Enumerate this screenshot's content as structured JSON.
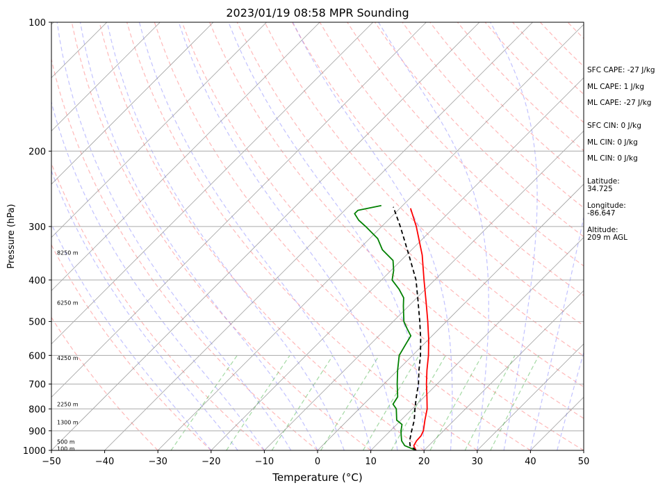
{
  "chart_data": {
    "type": "skew-t",
    "title": "2023/01/19 08:58 MPR Sounding",
    "xlabel": "Temperature (°C)",
    "ylabel": "Pressure (hPa)",
    "xlim": [
      -50,
      50
    ],
    "ylim": [
      1000,
      100
    ],
    "x_ticks": [
      -50,
      -40,
      -30,
      -20,
      -10,
      0,
      10,
      20,
      30,
      40,
      50
    ],
    "x_tick_labels": [
      "−50",
      "−40",
      "−30",
      "−20",
      "−10",
      "0",
      "10",
      "20",
      "30",
      "40",
      "50"
    ],
    "y_ticks": [
      1000,
      900,
      800,
      700,
      600,
      500,
      400,
      300,
      200,
      100
    ],
    "y_tick_labels": [
      "1000",
      "900",
      "800",
      "700",
      "600",
      "500",
      "400",
      "300",
      "200",
      "100"
    ],
    "height_labels": [
      {
        "p": 990,
        "text": "100 m"
      },
      {
        "p": 955,
        "text": "500 m"
      },
      {
        "p": 860,
        "text": "1300 m"
      },
      {
        "p": 780,
        "text": "2250 m"
      },
      {
        "p": 608,
        "text": "4250 m"
      },
      {
        "p": 452,
        "text": "6250 m"
      },
      {
        "p": 345,
        "text": "8250 m"
      }
    ],
    "series": [
      {
        "color": "#ff0000",
        "style": "solid",
        "points": [
          [
            1000,
            18.5
          ],
          [
            975,
            17.2
          ],
          [
            950,
            16.8
          ],
          [
            925,
            16.7
          ],
          [
            900,
            16.2
          ],
          [
            850,
            14.5
          ],
          [
            800,
            12.8
          ],
          [
            750,
            10.5
          ],
          [
            700,
            8.0
          ],
          [
            650,
            5.5
          ],
          [
            600,
            3.0
          ],
          [
            550,
            0.0
          ],
          [
            500,
            -3.5
          ],
          [
            450,
            -7.5
          ],
          [
            400,
            -12.0
          ],
          [
            350,
            -17.0
          ],
          [
            300,
            -23.5
          ],
          [
            272,
            -28.0
          ]
        ]
      },
      {
        "color": "#008000",
        "style": "solid",
        "points": [
          [
            1000,
            18.5
          ],
          [
            975,
            15.5
          ],
          [
            950,
            14.0
          ],
          [
            925,
            13.0
          ],
          [
            900,
            12.0
          ],
          [
            870,
            11.0
          ],
          [
            850,
            9.2
          ],
          [
            800,
            7.0
          ],
          [
            780,
            5.5
          ],
          [
            750,
            5.0
          ],
          [
            700,
            2.5
          ],
          [
            650,
            0.0
          ],
          [
            600,
            -2.5
          ],
          [
            560,
            -3.5
          ],
          [
            540,
            -4.0
          ],
          [
            520,
            -6.0
          ],
          [
            500,
            -8.0
          ],
          [
            460,
            -11.0
          ],
          [
            440,
            -12.5
          ],
          [
            420,
            -15.0
          ],
          [
            400,
            -18.0
          ],
          [
            380,
            -19.5
          ],
          [
            360,
            -21.5
          ],
          [
            340,
            -25.5
          ],
          [
            320,
            -28.5
          ],
          [
            300,
            -33.0
          ],
          [
            290,
            -35.5
          ],
          [
            280,
            -37.5
          ],
          [
            275,
            -37.5
          ],
          [
            268,
            -34.0
          ]
        ]
      },
      {
        "color": "#000000",
        "style": "dashed",
        "points": [
          [
            1000,
            18.5
          ],
          [
            975,
            16.5
          ],
          [
            950,
            15.5
          ],
          [
            900,
            14.0
          ],
          [
            850,
            12.5
          ],
          [
            800,
            10.5
          ],
          [
            750,
            8.5
          ],
          [
            700,
            6.5
          ],
          [
            650,
            4.0
          ],
          [
            600,
            1.5
          ],
          [
            550,
            -1.5
          ],
          [
            500,
            -5.0
          ],
          [
            450,
            -9.0
          ],
          [
            400,
            -13.5
          ],
          [
            350,
            -19.5
          ],
          [
            300,
            -26.5
          ],
          [
            270,
            -31.5
          ]
        ]
      }
    ]
  },
  "side_info": {
    "sfc_cape": "SFC CAPE: -27 J/kg",
    "ml_cape": "ML CAPE: 1 J/kg",
    "ml_cape2": "ML CAPE: -27 J/kg",
    "sfc_cin": "SFC CIN: 0 J/kg",
    "ml_cin": "ML CIN: 0 J/kg",
    "ml_cin2": "ML CIN: 0 J/kg",
    "latitude_label": "Latitude:",
    "latitude_value": "34.725",
    "longitude_label": "Longitude:",
    "longitude_value": "-86.647",
    "altitude_label": "Altitude:",
    "altitude_value": "209 m AGL"
  }
}
